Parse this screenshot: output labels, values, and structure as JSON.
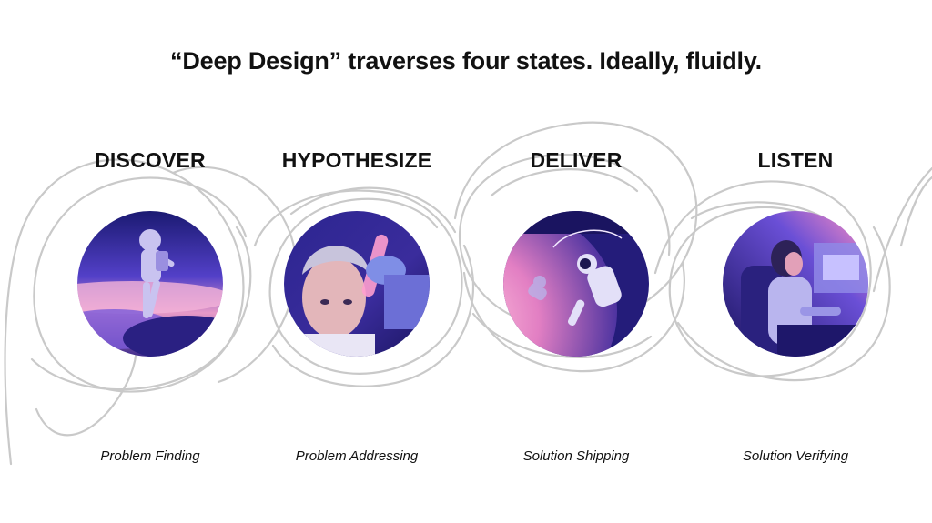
{
  "title": "“Deep Design” traverses four states. Ideally, fluidly.",
  "stages": [
    {
      "name": "DISCOVER",
      "subtitle": "Problem Finding",
      "icon": "astronaut-walking-illustration"
    },
    {
      "name": "HYPOTHESIZE",
      "subtitle": "Problem Addressing",
      "icon": "scientist-test-tube-illustration"
    },
    {
      "name": "DELIVER",
      "subtitle": "Solution Shipping",
      "icon": "astronauts-spacewalk-illustration"
    },
    {
      "name": "LISTEN",
      "subtitle": "Solution Verifying",
      "icon": "person-at-monitors-illustration"
    }
  ],
  "colors": {
    "loop_stroke": "#c9c9c9",
    "art_deep": "#1d1a6e",
    "art_violet": "#5a3fd0",
    "art_pink": "#f29ac4",
    "art_glow": "#ff8fc1"
  }
}
